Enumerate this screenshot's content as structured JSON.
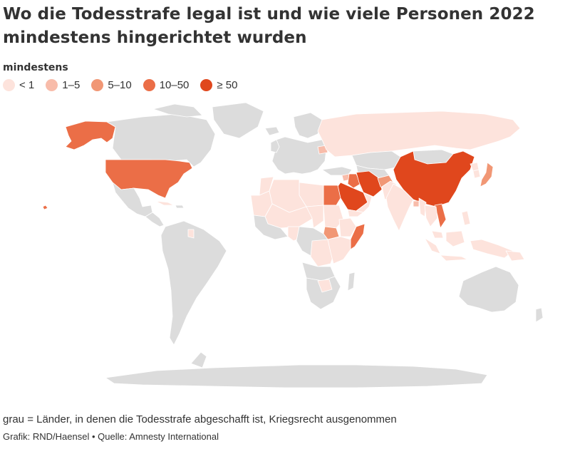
{
  "title": "Wo die Todesstrafe legal ist und wie viele Personen 2022 mindestens hingerichtet wurden",
  "legend": {
    "title": "mindestens",
    "items": [
      {
        "label": "< 1",
        "color": "#fde3dc"
      },
      {
        "label": "1–5",
        "color": "#f8bcaa"
      },
      {
        "label": "5–10",
        "color": "#f19775"
      },
      {
        "label": "10–50",
        "color": "#eb6e47"
      },
      {
        "label": "≥ 50",
        "color": "#e0471d"
      }
    ]
  },
  "colors": {
    "abolished": "#dcdcdc",
    "border": "#ffffff"
  },
  "note": "grau = Länder, in denen die Todesstrafe abgeschafft ist, Kriegsrecht ausgenommen",
  "source": "Grafik: RND/Haensel • Quelle: Amnesty International"
}
